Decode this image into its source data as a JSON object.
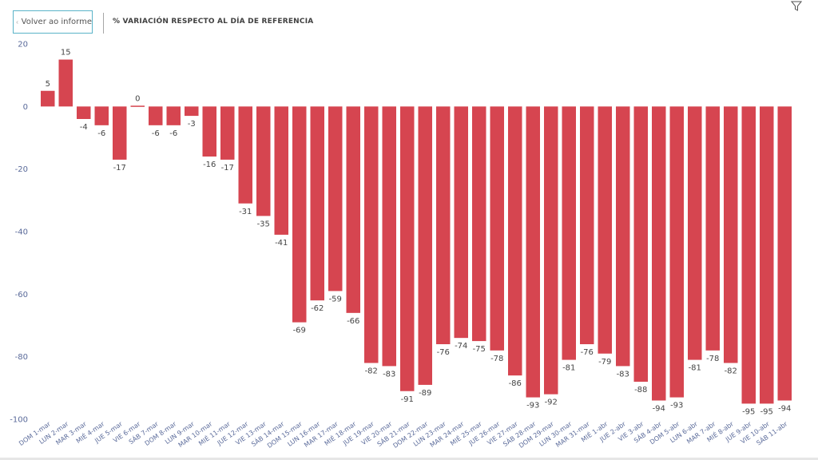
{
  "header": {
    "back_label": "Volver ao informe",
    "title": "% VARIACIÓN RESPECTO AL DÍA DE REFERENCIA"
  },
  "icons": {
    "back": "chevron-left-icon",
    "filter": "filter-icon"
  },
  "colors": {
    "bar": "#d64550",
    "accent": "#5ab3c8",
    "axis_text": "#5a6a9a",
    "label_text": "#444444"
  },
  "chart_data": {
    "type": "bar",
    "title": "% VARIACIÓN RESPECTO AL DÍA DE REFERENCIA",
    "xlabel": "",
    "ylabel": "",
    "ylim": [
      -100,
      20
    ],
    "yticks": [
      20,
      0,
      -20,
      -40,
      -60,
      -80,
      -100
    ],
    "grid": false,
    "categories": [
      "DOM 1-mar",
      "LUN 2-mar",
      "MAR 3-mar",
      "MIÉ 4-mar",
      "JUE 5-mar",
      "VIE 6-mar",
      "SÁB 7-mar",
      "DOM 8-mar",
      "LUN 9-mar",
      "MAR 10-mar",
      "MIÉ 11-mar",
      "JUE 12-mar",
      "VIE 13-mar",
      "SÁB 14-mar",
      "DOM 15-mar",
      "LUN 16-mar",
      "MAR 17-mar",
      "MIÉ 18-mar",
      "JUE 19-mar",
      "VIE 20-mar",
      "SÁB 21-mar",
      "DOM 22-mar",
      "LUN 23-mar",
      "MAR 24-mar",
      "MIÉ 25-mar",
      "JUE 26-mar",
      "VIE 27-mar",
      "SÁB 28-mar",
      "DOM 29-mar",
      "LUN 30-mar",
      "MAR 31-mar",
      "MIÉ 1-abr",
      "JUE 2-abr",
      "VIE 3-abr",
      "SÁB 4-abr",
      "DOM 5-abr",
      "LUN 6-abr",
      "MAR 7-abr",
      "MIÉ 8-abr",
      "JUE 9-abr",
      "VIE 10-abr",
      "SÁB 11-abr"
    ],
    "values": [
      5,
      15,
      -4,
      -6,
      -17,
      0,
      -6,
      -6,
      -3,
      -16,
      -17,
      -31,
      -35,
      -41,
      -69,
      -62,
      -59,
      -66,
      -82,
      -83,
      -91,
      -89,
      -76,
      -74,
      -75,
      -78,
      -86,
      -93,
      -92,
      -81,
      -76,
      -79,
      -83,
      -88,
      -94,
      -93,
      -81,
      -78,
      -82,
      -95,
      -95,
      -94
    ]
  }
}
